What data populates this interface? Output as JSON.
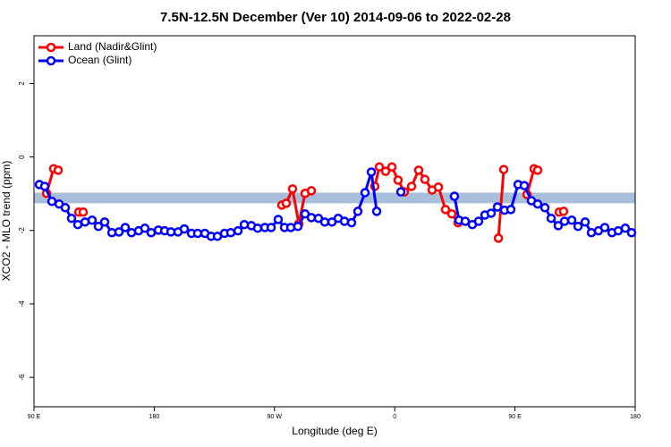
{
  "chart_data": {
    "type": "line",
    "title": "7.5N-12.5N December (Ver 10)   2014-09-06 to 2022-02-28",
    "x_label": "Longitude (deg E)",
    "y_label": "XCO2 - MLO trend (ppm)",
    "xlim": [
      90,
      540
    ],
    "xticks": [
      {
        "value": 90,
        "label": "90 E"
      },
      180,
      {
        "value": 270,
        "label": "90 W"
      },
      {
        "value": 360,
        "label": "0"
      },
      {
        "value": 450,
        "label": "90 E"
      },
      {
        "value": 540,
        "label": "180"
      }
    ],
    "ylim": [
      -6.8,
      3.3
    ],
    "yticks": [
      2,
      0,
      -2,
      -4,
      -6
    ],
    "band": {
      "range": [
        -1.26,
        -0.97
      ],
      "color": "#a8bfdc"
    },
    "legend": "top-left",
    "series": [
      {
        "name": "Land (Nadir&Glint)",
        "color": "#ff0000",
        "x": [
          99.4,
          104.7,
          108.1,
          null,
          123.5,
          126.8,
          null,
          275.5,
          278.8,
          283.5,
          288.2,
          292.9,
          297.6,
          null,
          345.1,
          348.5,
          353.2,
          357.9,
          362.5,
          367.2,
          372.6,
          377.9,
          382.6,
          388.0,
          392.7,
          398.0,
          402.7,
          407.4,
          null,
          437.6,
          441.6,
          null,
          459.0,
          464.3,
          467.0,
          null,
          483.1,
          486.4
        ],
        "values": [
          -0.99,
          -0.32,
          -0.36,
          null,
          -1.5,
          -1.5,
          null,
          -1.31,
          -1.26,
          -0.87,
          -1.82,
          -0.99,
          -0.92,
          null,
          -0.8,
          -0.27,
          -0.39,
          -0.27,
          -0.63,
          -0.95,
          -0.8,
          -0.36,
          -0.61,
          -0.9,
          -0.82,
          -1.43,
          -1.55,
          -1.79,
          null,
          -2.21,
          -0.34,
          null,
          -1.02,
          -0.32,
          -0.36,
          null,
          -1.5,
          -1.48
        ]
      },
      {
        "name": "Ocean (Glint)",
        "color": "#0000ff",
        "x": [
          94.0,
          98.0,
          103.4,
          108.8,
          113.4,
          118.1,
          122.8,
          128.2,
          133.5,
          138.2,
          142.9,
          148.3,
          153.6,
          158.3,
          163.0,
          168.3,
          173.0,
          177.7,
          183.1,
          187.8,
          192.5,
          197.8,
          202.5,
          207.9,
          212.5,
          217.9,
          222.6,
          227.3,
          232.6,
          237.3,
          242.7,
          247.4,
          252.7,
          257.4,
          262.8,
          267.5,
          272.8,
          277.5,
          282.2,
          287.5,
          292.9,
          297.6,
          302.9,
          307.6,
          313.0,
          317.7,
          322.4,
          327.7,
          332.4,
          337.8,
          342.5,
          346.5,
          null,
          364.6,
          null,
          404.7,
          408.1,
          412.8,
          418.1,
          422.8,
          427.5,
          432.2,
          436.9,
          442.2,
          446.9,
          452.3,
          457.0,
          462.3,
          467.0,
          472.4,
          477.1,
          482.4,
          487.1,
          492.5,
          497.2,
          502.5,
          507.2,
          512.5,
          517.2,
          522.6,
          527.3,
          532.6,
          537.3
        ],
        "values": [
          -0.75,
          -0.8,
          -1.21,
          -1.28,
          -1.38,
          -1.67,
          -1.84,
          -1.77,
          -1.72,
          -1.89,
          -1.77,
          -2.06,
          -2.04,
          -1.92,
          -2.06,
          -2.01,
          -1.94,
          -2.06,
          -1.99,
          -2.01,
          -2.04,
          -2.04,
          -1.96,
          -2.08,
          -2.08,
          -2.08,
          -2.16,
          -2.16,
          -2.08,
          -2.06,
          -2.01,
          -1.84,
          -1.87,
          -1.94,
          -1.92,
          -1.92,
          -1.7,
          -1.92,
          -1.92,
          -1.89,
          -1.55,
          -1.65,
          -1.67,
          -1.77,
          -1.77,
          -1.67,
          -1.75,
          -1.79,
          -1.48,
          -0.97,
          -0.41,
          -1.48,
          null,
          -0.95,
          null,
          -1.07,
          -1.72,
          -1.75,
          -1.84,
          -1.75,
          -1.58,
          -1.53,
          -1.36,
          -1.45,
          -1.43,
          -0.75,
          -0.78,
          -1.19,
          -1.28,
          -1.38,
          -1.67,
          -1.87,
          -1.75,
          -1.72,
          -1.89,
          -1.77,
          -2.06,
          -2.01,
          -1.92,
          -2.06,
          -2.01,
          -1.94,
          -2.06
        ]
      }
    ]
  }
}
